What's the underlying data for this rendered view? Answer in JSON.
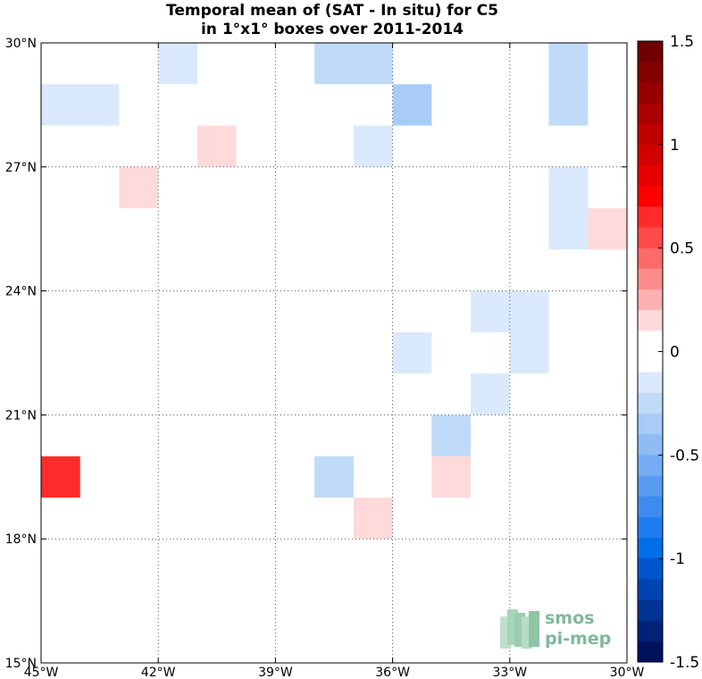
{
  "chart_data": {
    "type": "heatmap",
    "title": [
      "Temporal mean of (SAT - In situ) for C5",
      "in 1°x1° boxes over 2011-2014"
    ],
    "x_range": [
      -45,
      -30
    ],
    "y_range": [
      15,
      30
    ],
    "x_ticks": [
      {
        "value": -45,
        "label": "45°W"
      },
      {
        "value": -42,
        "label": "42°W"
      },
      {
        "value": -39,
        "label": "39°W"
      },
      {
        "value": -36,
        "label": "36°W"
      },
      {
        "value": -33,
        "label": "33°W"
      },
      {
        "value": -30,
        "label": "30°W"
      }
    ],
    "y_ticks": [
      {
        "value": 15,
        "label": "15°N"
      },
      {
        "value": 18,
        "label": "18°N"
      },
      {
        "value": 21,
        "label": "21°N"
      },
      {
        "value": 24,
        "label": "24°N"
      },
      {
        "value": 27,
        "label": "27°N"
      },
      {
        "value": 30,
        "label": "30°N"
      }
    ],
    "grid": true,
    "grid_style": "dotted",
    "colorbar": {
      "range": [
        -1.5,
        1.5
      ],
      "step": 0.1,
      "ticks": [
        {
          "value": 1.5,
          "label": "1.5"
        },
        {
          "value": 1,
          "label": "1"
        },
        {
          "value": 0.5,
          "label": "0.5"
        },
        {
          "value": 0,
          "label": "0"
        },
        {
          "value": -0.5,
          "label": "-0.5"
        },
        {
          "value": -1,
          "label": "-1"
        },
        {
          "value": -1.5,
          "label": "-1.5"
        }
      ],
      "colors_top_to_bottom": [
        "#6e0000",
        "#820000",
        "#960000",
        "#aa0000",
        "#be0000",
        "#d20000",
        "#e60000",
        "#ff0000",
        "#ff2a2a",
        "#ff4a4a",
        "#ff6a6a",
        "#ff8c8c",
        "#ffb0b0",
        "#ffdada",
        "#ffffff",
        "#ffffff",
        "#dae9fb",
        "#c0daf9",
        "#a8ccf7",
        "#8fbcf5",
        "#74adf4",
        "#5a9bf2",
        "#3f8bf0",
        "#1f7bf0",
        "#006fe8",
        "#0055cc",
        "#0044b0",
        "#003394",
        "#002278",
        "#00115c"
      ]
    },
    "cells": [
      {
        "lon": -45,
        "lat": 28,
        "value": -0.15
      },
      {
        "lon": -44,
        "lat": 28,
        "value": -0.15
      },
      {
        "lon": -42,
        "lat": 29,
        "value": -0.15
      },
      {
        "lon": -38,
        "lat": 29,
        "value": -0.25
      },
      {
        "lon": -37,
        "lat": 29,
        "value": -0.25
      },
      {
        "lon": -36,
        "lat": 28,
        "value": -0.3
      },
      {
        "lon": -32,
        "lat": 29,
        "value": -0.25
      },
      {
        "lon": -32,
        "lat": 28,
        "value": -0.25
      },
      {
        "lon": -41,
        "lat": 27,
        "value": 0.15
      },
      {
        "lon": -37,
        "lat": 27,
        "value": -0.15
      },
      {
        "lon": -43,
        "lat": 26,
        "value": 0.15
      },
      {
        "lon": -32,
        "lat": 26,
        "value": -0.15
      },
      {
        "lon": -32,
        "lat": 25,
        "value": -0.15
      },
      {
        "lon": -31,
        "lat": 25,
        "value": 0.15
      },
      {
        "lon": -34,
        "lat": 23,
        "value": -0.15
      },
      {
        "lon": -33,
        "lat": 23,
        "value": -0.15
      },
      {
        "lon": -33,
        "lat": 22,
        "value": -0.15
      },
      {
        "lon": -36,
        "lat": 22,
        "value": -0.15
      },
      {
        "lon": -34,
        "lat": 21,
        "value": -0.15
      },
      {
        "lon": -35,
        "lat": 20,
        "value": -0.25
      },
      {
        "lon": -35,
        "lat": 19,
        "value": 0.15
      },
      {
        "lon": -45,
        "lat": 19,
        "value": 0.65
      },
      {
        "lon": -38,
        "lat": 19,
        "value": -0.2
      },
      {
        "lon": -37,
        "lat": 18,
        "value": 0.15
      }
    ]
  },
  "logo": {
    "line1": "smos",
    "line2": "pi-mep"
  }
}
